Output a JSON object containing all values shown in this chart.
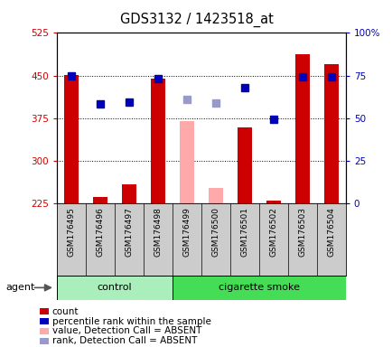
{
  "title": "GDS3132 / 1423518_at",
  "samples": [
    "GSM176495",
    "GSM176496",
    "GSM176497",
    "GSM176498",
    "GSM176499",
    "GSM176500",
    "GSM176501",
    "GSM176502",
    "GSM176503",
    "GSM176504"
  ],
  "count_values": [
    451,
    236,
    258,
    445,
    null,
    null,
    358,
    230,
    488,
    470
  ],
  "count_absent": [
    null,
    null,
    null,
    null,
    370,
    252,
    null,
    null,
    null,
    null
  ],
  "rank_present": [
    74.7,
    58.3,
    59.2,
    73.0,
    null,
    null,
    67.7,
    49.3,
    74.3,
    74.3
  ],
  "rank_absent": [
    null,
    null,
    null,
    null,
    61.0,
    59.0,
    null,
    null,
    null,
    null
  ],
  "ylim_left": [
    225,
    525
  ],
  "yticks_left": [
    225,
    300,
    375,
    450,
    525
  ],
  "ylim_right": [
    0,
    100
  ],
  "yticks_right": [
    0,
    25,
    50,
    75,
    100
  ],
  "ytick_labels_right": [
    "0",
    "25",
    "50",
    "75",
    "100%"
  ],
  "bar_color_red": "#cc0000",
  "bar_color_pink": "#ffaaaa",
  "dot_color_blue": "#0000bb",
  "dot_color_lightblue": "#9999cc",
  "group_control_color": "#aaeebb",
  "group_smoke_color": "#44dd55",
  "legend_items": [
    {
      "label": "count",
      "color": "#cc0000"
    },
    {
      "label": "percentile rank within the sample",
      "color": "#0000bb"
    },
    {
      "label": "value, Detection Call = ABSENT",
      "color": "#ffaaaa"
    },
    {
      "label": "rank, Detection Call = ABSENT",
      "color": "#9999cc"
    }
  ]
}
